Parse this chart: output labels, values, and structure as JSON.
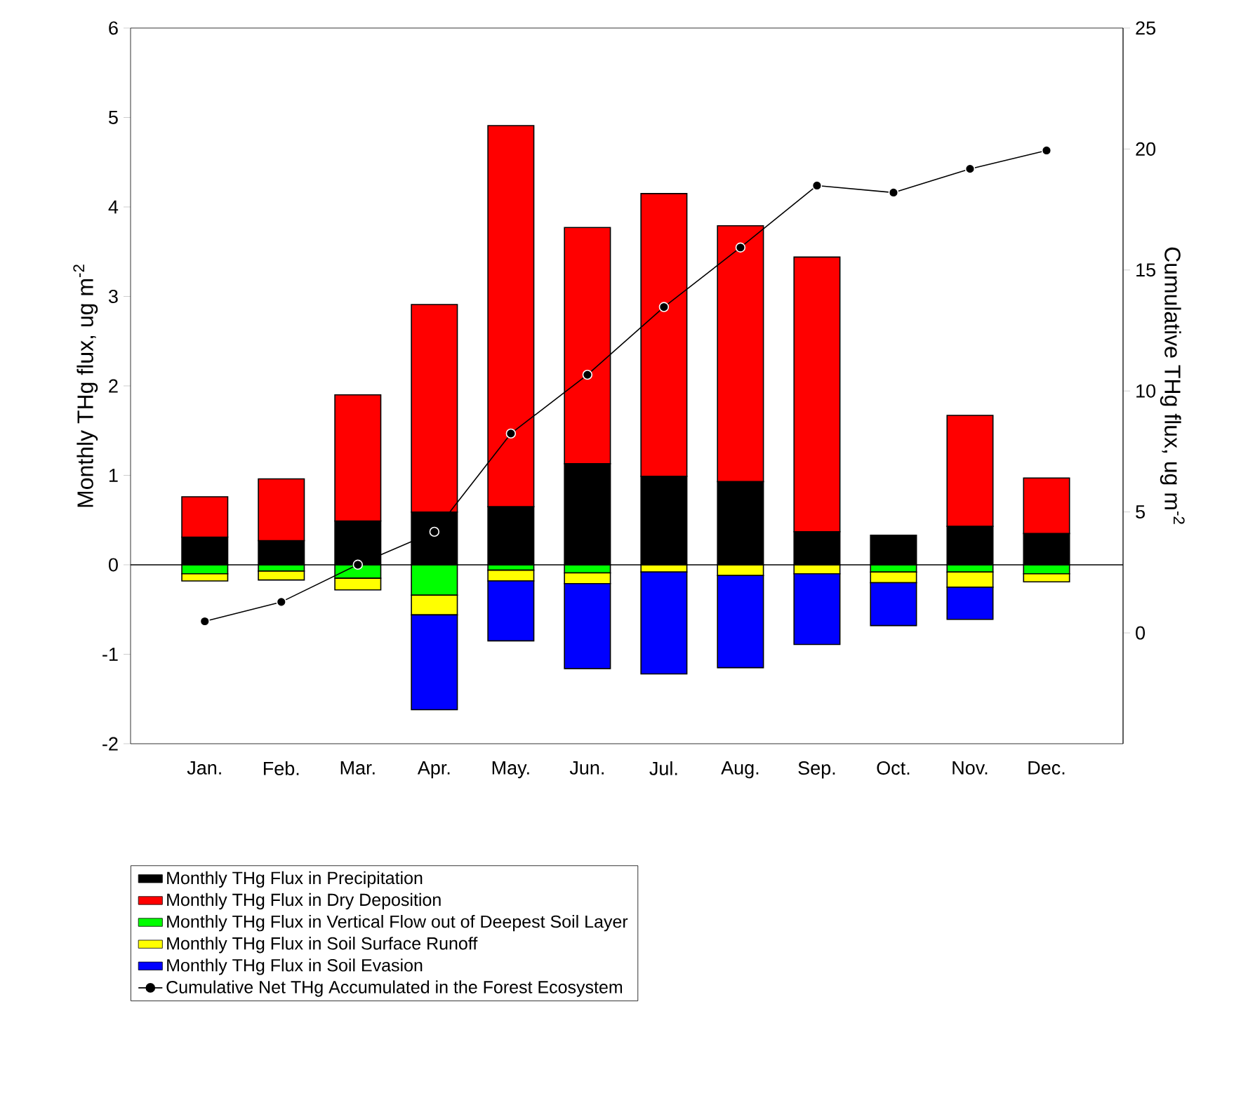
{
  "chart_data": {
    "type": "bar",
    "stacked": true,
    "categories": [
      "Jan.",
      "Feb.",
      "Mar.",
      "Apr.",
      "May.",
      "Jun.",
      "Jul.",
      "Aug.",
      "Sep.",
      "Oct.",
      "Nov.",
      "Dec."
    ],
    "ylabel": "Monthly THg flux, ug m$^{-2}$",
    "y2label": "Cumulative THg flux, ug m$^{-2}$",
    "ylim": [
      -2,
      6
    ],
    "yticks": [
      -2,
      -1,
      0,
      1,
      2,
      3,
      4,
      5,
      6
    ],
    "y2lim": [
      -4.58,
      25
    ],
    "y2ticks": [
      0,
      5,
      10,
      15,
      20,
      25
    ],
    "series": [
      {
        "name": "Monthly THg Flux in Precipitation",
        "color": "#000000",
        "values": [
          0.31,
          0.27,
          0.49,
          0.59,
          0.65,
          1.13,
          0.99,
          0.93,
          0.37,
          0.33,
          0.43,
          0.35
        ]
      },
      {
        "name": "Monthly THg Flux in Dry Deposition",
        "color": "#ff0000",
        "values": [
          0.45,
          0.69,
          1.41,
          2.32,
          4.26,
          2.64,
          3.16,
          2.86,
          3.07,
          null,
          1.24,
          0.62
        ]
      },
      {
        "name": "Monthly THg Flux in Vertical Flow out of Deepest Soil Layer",
        "color": "#00ff00",
        "values": [
          -0.1,
          -0.07,
          -0.15,
          -0.34,
          -0.06,
          -0.09,
          null,
          null,
          null,
          -0.08,
          -0.08,
          -0.1
        ]
      },
      {
        "name": "Monthly THg Flux in Soil Surface Runoff",
        "color": "#ffff00",
        "values": [
          -0.08,
          -0.1,
          -0.13,
          -0.22,
          -0.12,
          -0.12,
          -0.08,
          -0.12,
          -0.1,
          -0.12,
          -0.17,
          -0.09
        ]
      },
      {
        "name": "Monthly THg Flux in Soil Evasion",
        "color": "#0000ff",
        "values": [
          null,
          null,
          null,
          -1.06,
          -0.67,
          -0.95,
          -1.14,
          -1.03,
          -0.79,
          -0.48,
          -0.36,
          null
        ]
      },
      {
        "name": "Cumulative Net THg Accumulated in the Forest Ecosystem",
        "type": "line",
        "axis": "y2",
        "color": "#000000",
        "marker": "circle",
        "line_style": "solid",
        "values": [
          0.48,
          1.28,
          2.82,
          4.18,
          8.24,
          10.67,
          13.47,
          15.93,
          18.49,
          18.2,
          19.18,
          19.94
        ]
      }
    ],
    "ref_lines": [
      {
        "axis": "y",
        "value": 0
      }
    ],
    "grid": false,
    "legend": "bottom"
  }
}
